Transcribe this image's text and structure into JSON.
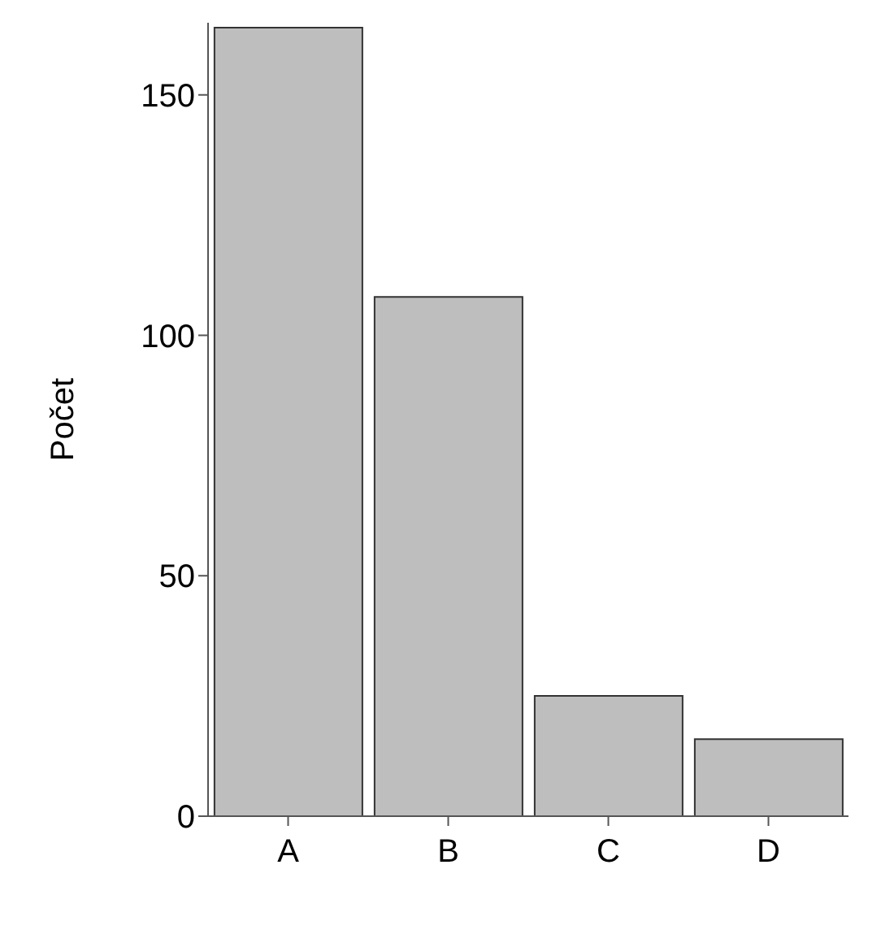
{
  "chart_data": {
    "type": "bar",
    "ylabel": "Počet",
    "categories": [
      "A",
      "B",
      "C",
      "D"
    ],
    "values": [
      164,
      108,
      25,
      16
    ],
    "color": "#bebebe",
    "ylim": [
      0,
      165
    ],
    "yticks": [
      0,
      50,
      100,
      150
    ],
    "grid": false,
    "legend": false
  }
}
